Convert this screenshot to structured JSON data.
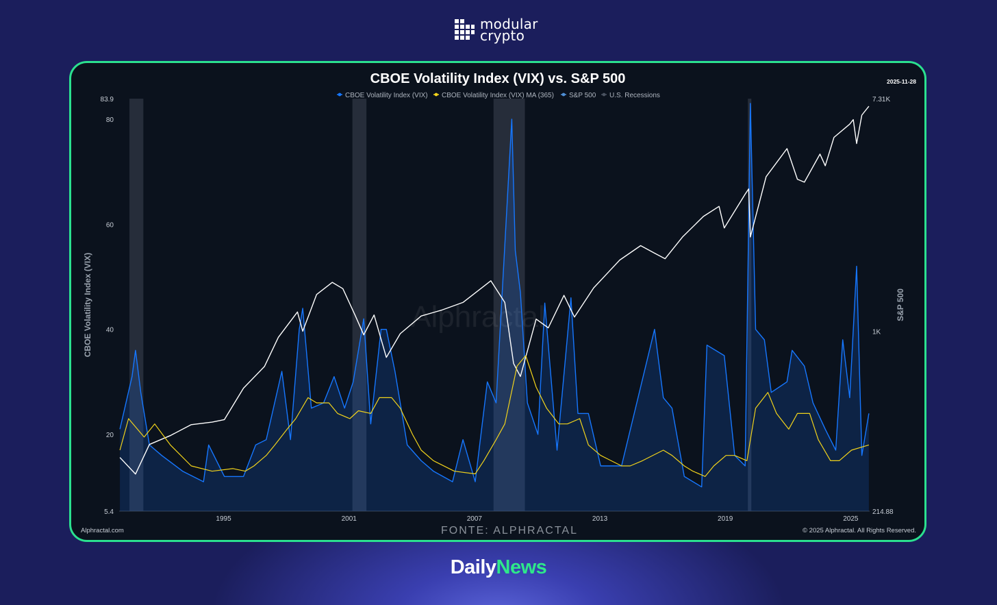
{
  "brand": {
    "line1": "modular",
    "line2": "crypto"
  },
  "footer": {
    "daily": "Daily",
    "news": "News"
  },
  "date_badge": "2025-11-28",
  "watermark": "Alphractal",
  "source_left": "Alphractal.com",
  "source_center": "FONTE: ALPHRACTAL",
  "copyright": "© 2025 Alphractal. All Rights Reserved.",
  "colors": {
    "vix": "#1677ff",
    "ma": "#f2d31b",
    "sp500": "#ffffff",
    "recession": "#2b3340",
    "border": "#2be08f",
    "background": "#0b121d"
  },
  "chart_data": {
    "type": "line",
    "title": "CBOE Volatility Index (VIX) vs. S&P 500",
    "ylabel": "CBOE Volatility Index (VIX)",
    "y2label": "S&P 500",
    "ylim": [
      5.4,
      83.9
    ],
    "y2lim": [
      214.88,
      7310
    ],
    "y2_scale": "log",
    "xlim": [
      "1990-01-02",
      "2025-11-28"
    ],
    "x_ticks": [
      "1995",
      "2001",
      "2007",
      "2013",
      "2019",
      "2025"
    ],
    "y_ticks": [
      "5.4",
      "20",
      "40",
      "60",
      "80",
      "83.9"
    ],
    "y2_ticks": [
      "214.88",
      "1K",
      "7.31K"
    ],
    "legend": [
      "CBOE Volatility Index (VIX)",
      "CBOE Volatility Index (VIX) MA (365)",
      "S&P 500",
      "U.S. Recessions"
    ],
    "legend_position": "top",
    "grid": false,
    "recessions": [
      {
        "start": "1990-07-01",
        "end": "1991-03-01"
      },
      {
        "start": "2001-03-01",
        "end": "2001-11-01"
      },
      {
        "start": "2007-12-01",
        "end": "2009-06-01"
      },
      {
        "start": "2020-02-01",
        "end": "2020-04-01"
      }
    ],
    "series": [
      {
        "name": "CBOE Volatility Index (VIX)",
        "points": [
          [
            "1990-01",
            21
          ],
          [
            "1990-08",
            31
          ],
          [
            "1990-10",
            36
          ],
          [
            "1991-01",
            28
          ],
          [
            "1991-06",
            18
          ],
          [
            "1992-01",
            16
          ],
          [
            "1993-01",
            13
          ],
          [
            "1994-01",
            11
          ],
          [
            "1994-04",
            18
          ],
          [
            "1995-01",
            12
          ],
          [
            "1995-12",
            12
          ],
          [
            "1996-07",
            18
          ],
          [
            "1997-01",
            19
          ],
          [
            "1997-10",
            32
          ],
          [
            "1998-03",
            19
          ],
          [
            "1998-08",
            40
          ],
          [
            "1998-10",
            44
          ],
          [
            "1999-03",
            25
          ],
          [
            "1999-10",
            26
          ],
          [
            "2000-04",
            31
          ],
          [
            "2000-10",
            25
          ],
          [
            "2001-03",
            30
          ],
          [
            "2001-09",
            42
          ],
          [
            "2002-01",
            22
          ],
          [
            "2002-07",
            40
          ],
          [
            "2002-10",
            40
          ],
          [
            "2003-03",
            32
          ],
          [
            "2003-10",
            18
          ],
          [
            "2004-06",
            15
          ],
          [
            "2005-01",
            13
          ],
          [
            "2005-12",
            11
          ],
          [
            "2006-06",
            19
          ],
          [
            "2007-01",
            11
          ],
          [
            "2007-08",
            30
          ],
          [
            "2008-01",
            26
          ],
          [
            "2008-10",
            80
          ],
          [
            "2008-12",
            55
          ],
          [
            "2009-03",
            47
          ],
          [
            "2009-07",
            26
          ],
          [
            "2010-01",
            20
          ],
          [
            "2010-05",
            45
          ],
          [
            "2010-12",
            17
          ],
          [
            "2011-08",
            46
          ],
          [
            "2011-12",
            24
          ],
          [
            "2012-06",
            24
          ],
          [
            "2013-01",
            14
          ],
          [
            "2014-01",
            14
          ],
          [
            "2015-08",
            40
          ],
          [
            "2016-01",
            27
          ],
          [
            "2016-06",
            25
          ],
          [
            "2017-01",
            12
          ],
          [
            "2017-11",
            10
          ],
          [
            "2018-02",
            37
          ],
          [
            "2018-12",
            35
          ],
          [
            "2019-06",
            16
          ],
          [
            "2019-12",
            14
          ],
          [
            "2020-03",
            83
          ],
          [
            "2020-06",
            40
          ],
          [
            "2020-11",
            38
          ],
          [
            "2021-03",
            28
          ],
          [
            "2021-12",
            30
          ],
          [
            "2022-03",
            36
          ],
          [
            "2022-10",
            33
          ],
          [
            "2023-03",
            26
          ],
          [
            "2023-10",
            21
          ],
          [
            "2024-04",
            17
          ],
          [
            "2024-08",
            38
          ],
          [
            "2024-12",
            27
          ],
          [
            "2025-04",
            52
          ],
          [
            "2025-07",
            16
          ],
          [
            "2025-11",
            24
          ]
        ]
      },
      {
        "name": "CBOE Volatility Index (VIX) MA (365)",
        "points": [
          [
            "1990-01",
            17
          ],
          [
            "1990-06",
            23
          ],
          [
            "1991-03",
            19.5
          ],
          [
            "1991-09",
            22
          ],
          [
            "1992-06",
            18
          ],
          [
            "1993-06",
            14
          ],
          [
            "1994-06",
            13
          ],
          [
            "1995-06",
            13.5
          ],
          [
            "1996-01",
            13
          ],
          [
            "1996-06",
            14
          ],
          [
            "1997-01",
            16
          ],
          [
            "1997-06",
            18
          ],
          [
            "1998-01",
            21
          ],
          [
            "1998-06",
            23
          ],
          [
            "1999-01",
            27
          ],
          [
            "1999-06",
            26
          ],
          [
            "2000-01",
            26
          ],
          [
            "2000-06",
            24
          ],
          [
            "2001-01",
            23
          ],
          [
            "2001-06",
            24.5
          ],
          [
            "2002-01",
            24
          ],
          [
            "2002-06",
            27
          ],
          [
            "2003-01",
            27
          ],
          [
            "2003-06",
            25
          ],
          [
            "2004-01",
            20
          ],
          [
            "2004-06",
            17
          ],
          [
            "2005-01",
            15
          ],
          [
            "2006-01",
            13
          ],
          [
            "2007-01",
            12.5
          ],
          [
            "2007-06",
            15
          ],
          [
            "2008-01",
            19
          ],
          [
            "2008-06",
            22
          ],
          [
            "2009-01",
            33
          ],
          [
            "2009-06",
            35
          ],
          [
            "2009-12",
            29
          ],
          [
            "2010-06",
            25
          ],
          [
            "2011-01",
            22
          ],
          [
            "2011-06",
            22
          ],
          [
            "2012-01",
            23
          ],
          [
            "2012-06",
            18
          ],
          [
            "2013-01",
            16
          ],
          [
            "2014-01",
            14
          ],
          [
            "2014-06",
            14
          ],
          [
            "2015-01",
            15
          ],
          [
            "2016-01",
            17
          ],
          [
            "2016-06",
            16
          ],
          [
            "2017-01",
            14
          ],
          [
            "2017-06",
            13
          ],
          [
            "2018-01",
            12
          ],
          [
            "2018-06",
            14
          ],
          [
            "2019-01",
            16
          ],
          [
            "2019-06",
            16
          ],
          [
            "2020-01",
            15
          ],
          [
            "2020-06",
            25
          ],
          [
            "2021-01",
            28
          ],
          [
            "2021-06",
            24
          ],
          [
            "2022-01",
            21
          ],
          [
            "2022-06",
            24
          ],
          [
            "2023-01",
            24
          ],
          [
            "2023-06",
            19
          ],
          [
            "2024-01",
            15
          ],
          [
            "2024-06",
            15
          ],
          [
            "2025-01",
            17
          ],
          [
            "2025-11",
            18
          ]
        ]
      },
      {
        "name": "S&P 500",
        "points": [
          [
            "1990-01",
            340
          ],
          [
            "1990-10",
            295
          ],
          [
            "1991-06",
            380
          ],
          [
            "1992-06",
            410
          ],
          [
            "1993-06",
            450
          ],
          [
            "1994-06",
            460
          ],
          [
            "1995-01",
            470
          ],
          [
            "1995-12",
            615
          ],
          [
            "1996-12",
            740
          ],
          [
            "1997-08",
            950
          ],
          [
            "1998-07",
            1180
          ],
          [
            "1998-10",
            1000
          ],
          [
            "1999-06",
            1370
          ],
          [
            "2000-03",
            1520
          ],
          [
            "2000-09",
            1440
          ],
          [
            "2001-04",
            1150
          ],
          [
            "2001-09",
            970
          ],
          [
            "2002-03",
            1150
          ],
          [
            "2002-10",
            800
          ],
          [
            "2003-06",
            980
          ],
          [
            "2004-06",
            1140
          ],
          [
            "2005-06",
            1200
          ],
          [
            "2006-06",
            1280
          ],
          [
            "2007-10",
            1540
          ],
          [
            "2008-06",
            1280
          ],
          [
            "2008-11",
            760
          ],
          [
            "2009-03",
            680
          ],
          [
            "2009-12",
            1110
          ],
          [
            "2010-07",
            1030
          ],
          [
            "2011-04",
            1360
          ],
          [
            "2011-10",
            1130
          ],
          [
            "2012-09",
            1450
          ],
          [
            "2013-12",
            1840
          ],
          [
            "2014-12",
            2080
          ],
          [
            "2015-08",
            1950
          ],
          [
            "2016-02",
            1860
          ],
          [
            "2016-12",
            2240
          ],
          [
            "2017-12",
            2670
          ],
          [
            "2018-09",
            2910
          ],
          [
            "2018-12",
            2420
          ],
          [
            "2019-12",
            3230
          ],
          [
            "2020-02",
            3380
          ],
          [
            "2020-03",
            2240
          ],
          [
            "2020-12",
            3750
          ],
          [
            "2021-12",
            4770
          ],
          [
            "2022-06",
            3670
          ],
          [
            "2022-10",
            3580
          ],
          [
            "2023-07",
            4550
          ],
          [
            "2023-10",
            4120
          ],
          [
            "2024-03",
            5250
          ],
          [
            "2024-12",
            5880
          ],
          [
            "2025-02",
            6110
          ],
          [
            "2025-04",
            4980
          ],
          [
            "2025-07",
            6350
          ],
          [
            "2025-11",
            6850
          ]
        ]
      }
    ]
  }
}
